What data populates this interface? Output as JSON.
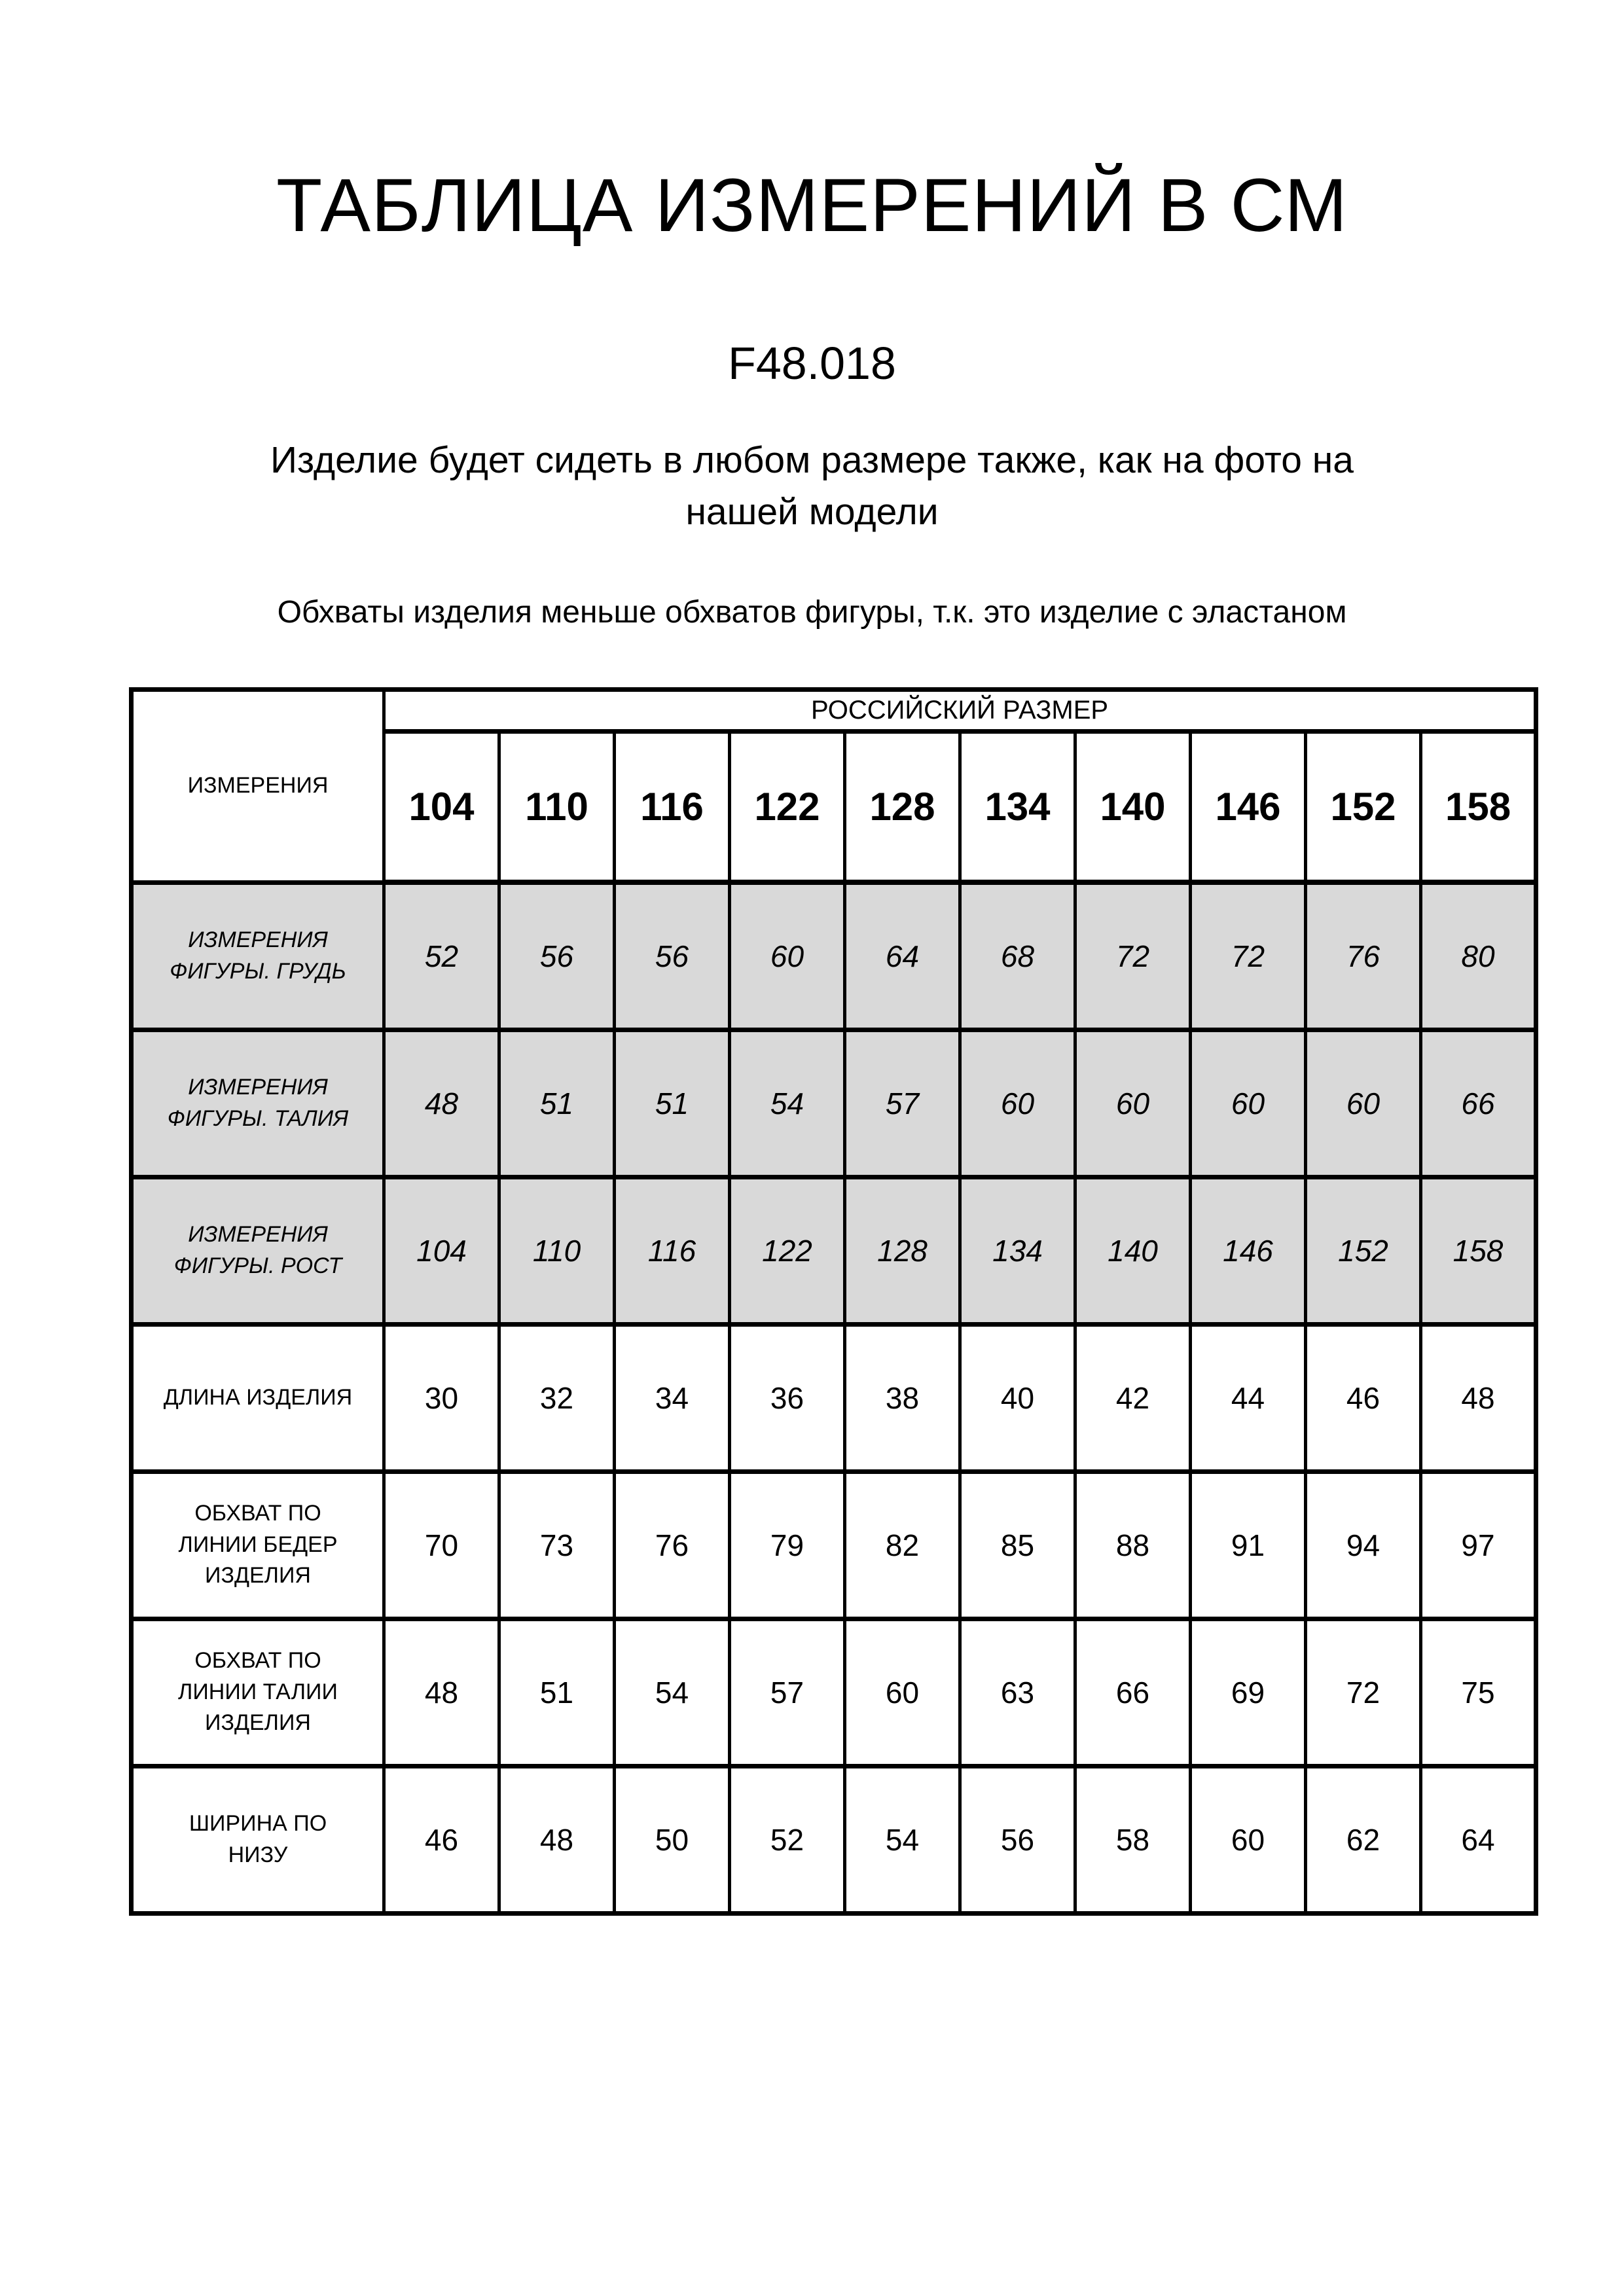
{
  "header": {
    "title": "ТАБЛИЦА ИЗМЕРЕНИЙ В СМ",
    "model_code": "F48.018",
    "fit_note": "Изделие будет сидеть в любом размере также, как на фото на\nнашей модели",
    "elastane_note": "Обхваты изделия меньше обхватов фигуры, т.к. это изделие с эластаном"
  },
  "table": {
    "corner_label": "ИЗМЕРЕНИЯ",
    "group_header": "РОССИЙСКИЙ РАЗМЕР",
    "sizes": [
      "104",
      "110",
      "116",
      "122",
      "128",
      "134",
      "140",
      "146",
      "152",
      "158"
    ],
    "rows": [
      {
        "label": "ИЗМЕРЕНИЯ\nФИГУРЫ. ГРУДЬ",
        "category": "figure",
        "values": [
          "52",
          "56",
          "56",
          "60",
          "64",
          "68",
          "72",
          "72",
          "76",
          "80"
        ]
      },
      {
        "label": "ИЗМЕРЕНИЯ\nФИГУРЫ. ТАЛИЯ",
        "category": "figure",
        "values": [
          "48",
          "51",
          "51",
          "54",
          "57",
          "60",
          "60",
          "60",
          "60",
          "66"
        ]
      },
      {
        "label": "ИЗМЕРЕНИЯ\nФИГУРЫ. РОСТ",
        "category": "figure",
        "values": [
          "104",
          "110",
          "116",
          "122",
          "128",
          "134",
          "140",
          "146",
          "152",
          "158"
        ]
      },
      {
        "label": "ДЛИНА ИЗДЕЛИЯ",
        "category": "product",
        "values": [
          "30",
          "32",
          "34",
          "36",
          "38",
          "40",
          "42",
          "44",
          "46",
          "48"
        ]
      },
      {
        "label": "ОБХВАТ ПО\nЛИНИИ БЕДЕР\nИЗДЕЛИЯ",
        "category": "product",
        "values": [
          "70",
          "73",
          "76",
          "79",
          "82",
          "85",
          "88",
          "91",
          "94",
          "97"
        ]
      },
      {
        "label": "ОБХВАТ ПО\nЛИНИИ ТАЛИИ\nИЗДЕЛИЯ",
        "category": "product",
        "values": [
          "48",
          "51",
          "54",
          "57",
          "60",
          "63",
          "66",
          "69",
          "72",
          "75"
        ]
      },
      {
        "label": "ШИРИНА ПО\nНИЗУ",
        "category": "product",
        "values": [
          "46",
          "48",
          "50",
          "52",
          "54",
          "56",
          "58",
          "60",
          "62",
          "64"
        ]
      }
    ]
  },
  "colors": {
    "page_bg": "#ffffff",
    "text": "#000000",
    "border": "#000000",
    "figure_row_bg": "#d9d9d9"
  }
}
